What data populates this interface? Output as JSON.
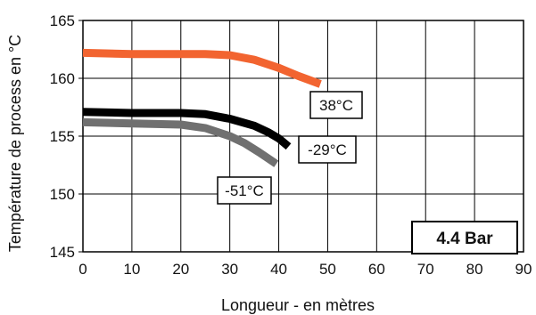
{
  "chart_data": {
    "type": "line",
    "title": "",
    "xlabel": "Longueur - en mètres",
    "ylabel": "Température de process en °C",
    "xlim": [
      0,
      90
    ],
    "ylim": [
      145,
      165
    ],
    "xticks": [
      0,
      10,
      20,
      30,
      40,
      50,
      60,
      70,
      80,
      90
    ],
    "yticks": [
      145,
      150,
      155,
      160,
      165
    ],
    "grid": true,
    "legend": "none",
    "badge": "4.4 Bar",
    "series": [
      {
        "label": "38°C",
        "color": "#f26430",
        "points": [
          [
            0,
            162.2
          ],
          [
            10,
            162.1
          ],
          [
            20,
            162.1
          ],
          [
            25,
            162.1
          ],
          [
            30,
            162.0
          ],
          [
            35,
            161.6
          ],
          [
            40,
            160.9
          ],
          [
            44,
            160.2
          ],
          [
            48.5,
            159.5
          ]
        ]
      },
      {
        "label": "-29°C",
        "color": "#000000",
        "points": [
          [
            0,
            157.1
          ],
          [
            10,
            157.0
          ],
          [
            20,
            157.0
          ],
          [
            25,
            156.9
          ],
          [
            30,
            156.5
          ],
          [
            35,
            155.9
          ],
          [
            38,
            155.3
          ],
          [
            40,
            154.8
          ],
          [
            42,
            154.1
          ]
        ]
      },
      {
        "label": "-51°C",
        "color": "#707070",
        "points": [
          [
            0,
            156.2
          ],
          [
            10,
            156.1
          ],
          [
            20,
            156.0
          ],
          [
            25,
            155.7
          ],
          [
            30,
            155.0
          ],
          [
            33,
            154.4
          ],
          [
            36,
            153.6
          ],
          [
            39.5,
            152.6
          ]
        ]
      }
    ]
  }
}
